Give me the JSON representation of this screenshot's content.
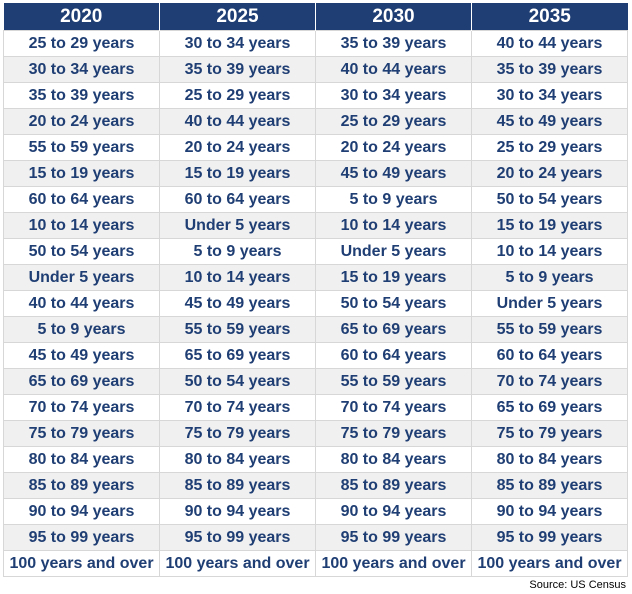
{
  "chart_data": {
    "type": "table",
    "columns": [
      "2020",
      "2025",
      "2030",
      "2035"
    ],
    "rows": [
      [
        "25 to 29 years",
        "30 to 34 years",
        "35 to 39 years",
        "40 to 44 years"
      ],
      [
        "30 to 34 years",
        "35 to 39 years",
        "40 to 44 years",
        "35 to 39 years"
      ],
      [
        "35 to 39 years",
        "25 to 29 years",
        "30 to 34 years",
        "30 to 34 years"
      ],
      [
        "20 to 24 years",
        "40 to 44 years",
        "25 to 29 years",
        "45 to 49 years"
      ],
      [
        "55 to 59 years",
        "20 to 24 years",
        "20 to 24 years",
        "25 to 29 years"
      ],
      [
        "15 to 19 years",
        "15 to 19 years",
        "45 to 49 years",
        "20 to 24 years"
      ],
      [
        "60 to 64 years",
        "60 to 64 years",
        "5 to 9 years",
        "50 to 54 years"
      ],
      [
        "10 to 14 years",
        "Under 5 years",
        "10 to 14 years",
        "15 to 19 years"
      ],
      [
        "50 to 54 years",
        "5 to 9 years",
        "Under 5 years",
        "10 to 14 years"
      ],
      [
        "Under 5 years",
        "10 to 14 years",
        "15 to 19 years",
        "5 to 9 years"
      ],
      [
        "40 to 44 years",
        "45 to 49 years",
        "50 to 54 years",
        "Under 5 years"
      ],
      [
        "5 to 9 years",
        "55 to 59 years",
        "65 to 69 years",
        "55 to 59 years"
      ],
      [
        "45 to 49 years",
        "65 to 69 years",
        "60 to 64 years",
        "60 to 64 years"
      ],
      [
        "65 to 69 years",
        "50 to 54 years",
        "55 to 59 years",
        "70 to 74 years"
      ],
      [
        "70 to 74 years",
        "70 to 74 years",
        "70 to 74 years",
        "65 to 69 years"
      ],
      [
        "75 to 79 years",
        "75 to 79 years",
        "75 to 79 years",
        "75 to 79 years"
      ],
      [
        "80 to 84 years",
        "80 to 84 years",
        "80 to 84 years",
        "80 to 84 years"
      ],
      [
        "85 to 89 years",
        "85 to 89 years",
        "85 to 89 years",
        "85 to 89 years"
      ],
      [
        "90 to 94 years",
        "90 to 94 years",
        "90 to 94 years",
        "90 to 94 years"
      ],
      [
        "95 to 99 years",
        "95 to 99 years",
        "95 to 99 years",
        "95 to 99 years"
      ],
      [
        "100 years and over",
        "100 years and over",
        "100 years and over",
        "100 years and over"
      ]
    ],
    "source": "Source: US Census"
  },
  "colors": {
    "header_bg": "#1f3e73",
    "header_text": "#ffffff",
    "cell_text": "#1f3e73",
    "alt_row_bg": "#f0f0f0"
  }
}
